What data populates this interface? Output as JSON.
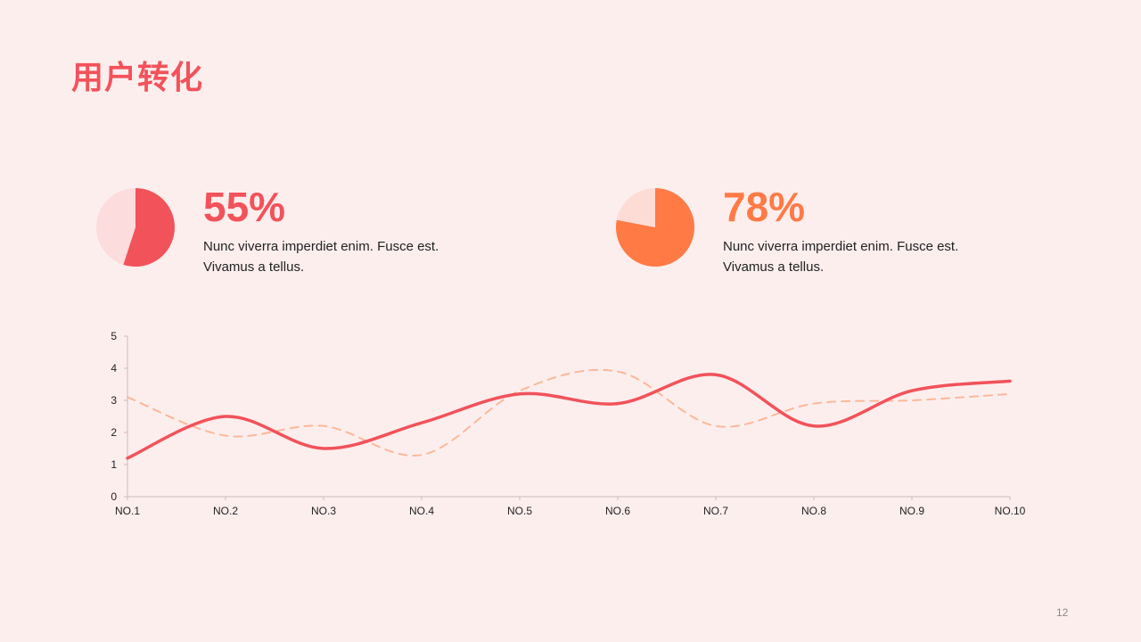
{
  "title": "用户转化",
  "stats": [
    {
      "percent_label": "55%",
      "value": 0.55,
      "desc_line1": "Nunc viverra  imperdiet enim. Fusce est.",
      "desc_line2": "Vivamus  a tellus.",
      "color": "#f2525a",
      "track_color": "#fcdcdc"
    },
    {
      "percent_label": "78%",
      "value": 0.78,
      "desc_line1": "Nunc viverra  imperdiet enim. Fusce est.",
      "desc_line2": "Vivamus  a tellus.",
      "color": "#ff7a45",
      "track_color": "#fddcd6"
    }
  ],
  "chart_data": {
    "type": "line",
    "categories": [
      "NO.1",
      "NO.2",
      "NO.3",
      "NO.4",
      "NO.5",
      "NO.6",
      "NO.7",
      "NO.8",
      "NO.9",
      "NO.10"
    ],
    "ylim": [
      0,
      5
    ],
    "yticks": [
      0,
      1,
      2,
      3,
      4,
      5
    ],
    "grid": false,
    "series": [
      {
        "values": [
          1.2,
          2.5,
          1.5,
          2.3,
          3.2,
          2.9,
          3.8,
          2.2,
          3.3,
          3.6
        ],
        "color": "#f2525a",
        "style": "solid"
      },
      {
        "values": [
          3.1,
          1.9,
          2.2,
          1.3,
          3.3,
          3.9,
          2.2,
          2.9,
          3.0,
          3.2
        ],
        "color": "#fbb89a",
        "style": "dashed"
      }
    ]
  },
  "page_number": "12"
}
